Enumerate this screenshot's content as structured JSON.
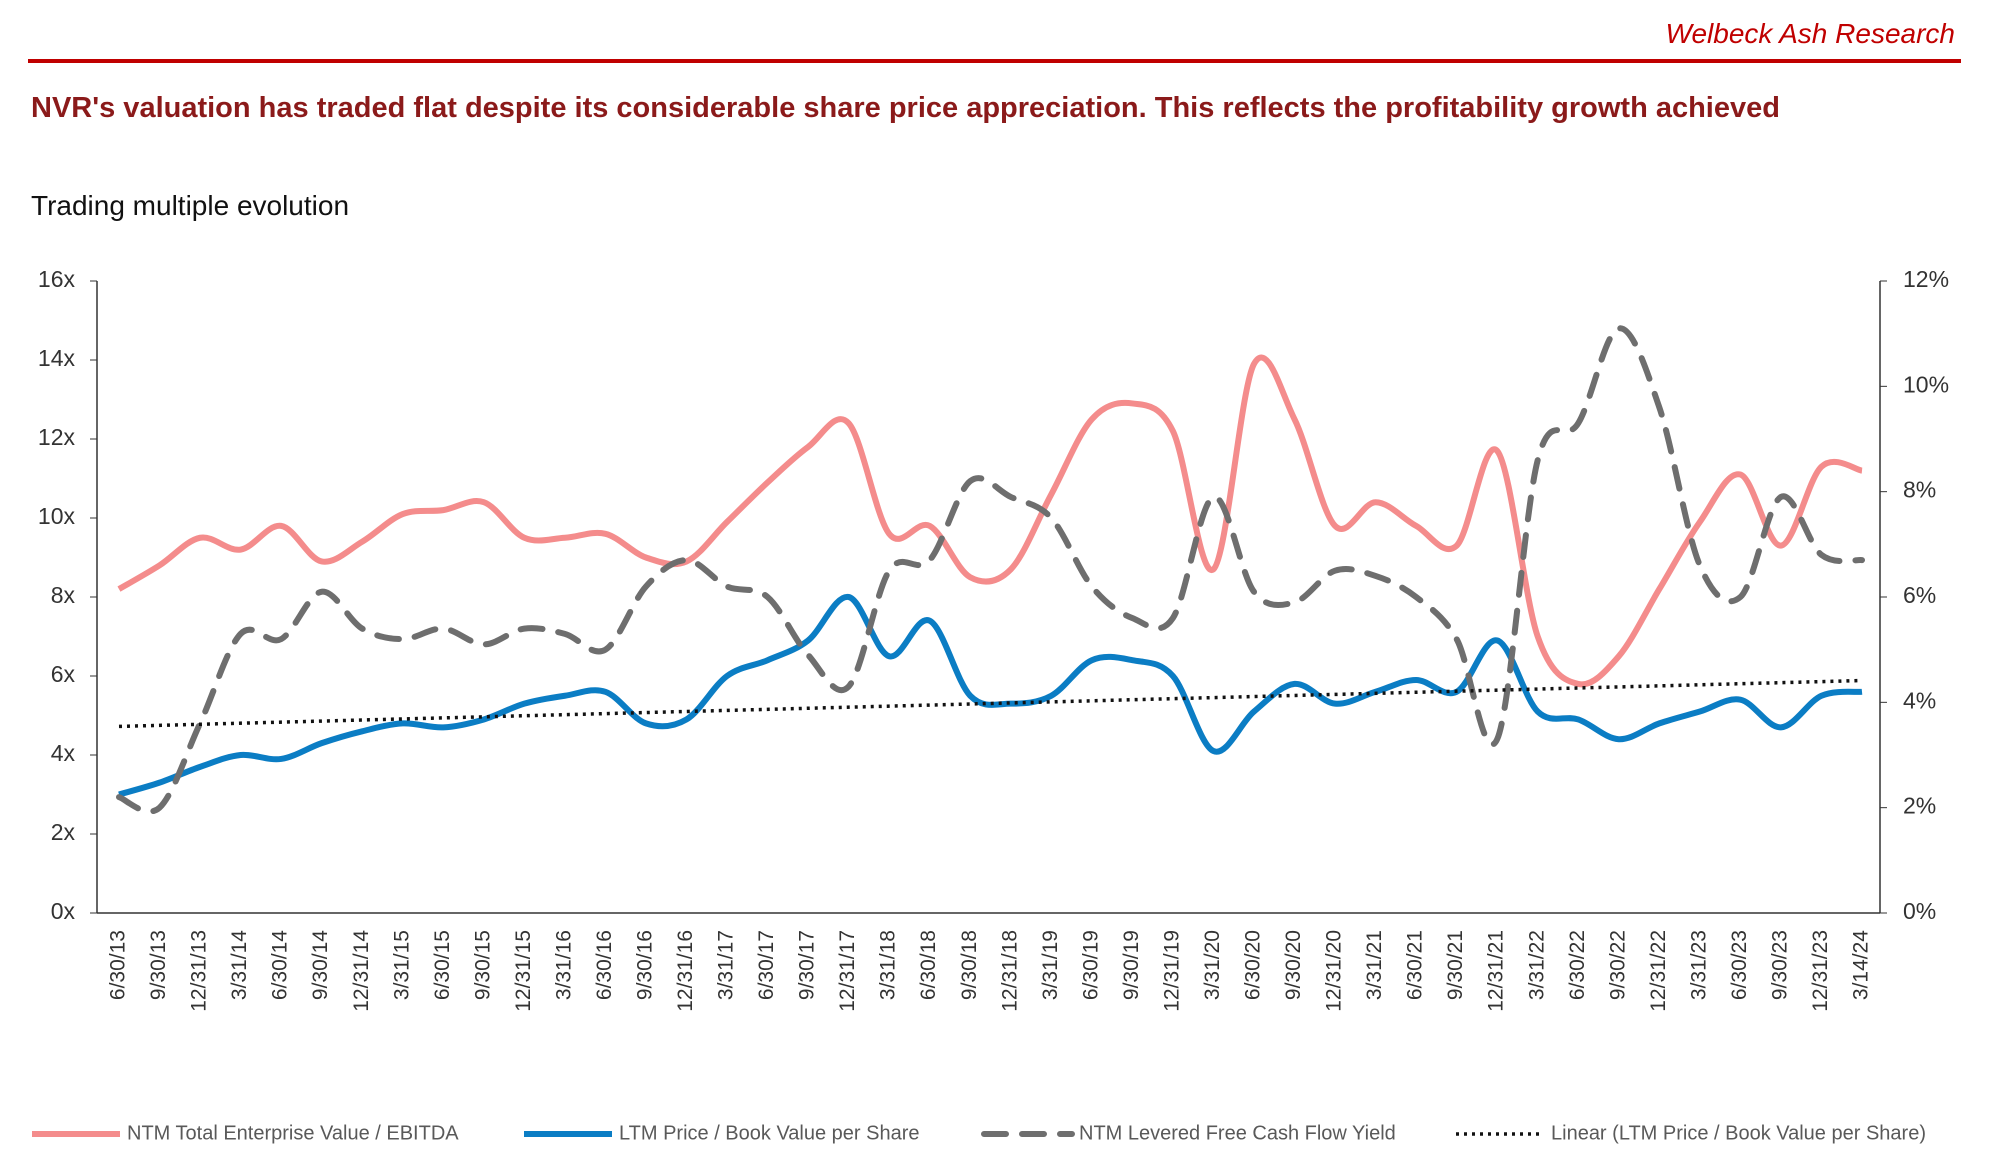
{
  "header": {
    "brand": "Welbeck Ash Research",
    "title": "NVR's valuation has traded flat despite its considerable share price appreciation. This reflects the profitability growth achieved",
    "subtitle": "Trading multiple evolution"
  },
  "chart_data": {
    "type": "line",
    "smooth": true,
    "categories": [
      "6/30/13",
      "9/30/13",
      "12/31/13",
      "3/31/14",
      "6/30/14",
      "9/30/14",
      "12/31/14",
      "3/31/15",
      "6/30/15",
      "9/30/15",
      "12/31/15",
      "3/31/16",
      "6/30/16",
      "9/30/16",
      "12/31/16",
      "3/31/17",
      "6/30/17",
      "9/30/17",
      "12/31/17",
      "3/31/18",
      "6/30/18",
      "9/30/18",
      "12/31/18",
      "3/31/19",
      "6/30/19",
      "9/30/19",
      "12/31/19",
      "3/31/20",
      "6/30/20",
      "9/30/20",
      "12/31/20",
      "3/31/21",
      "6/30/21",
      "9/30/21",
      "12/31/21",
      "3/31/22",
      "6/30/22",
      "9/30/22",
      "12/31/22",
      "3/31/23",
      "6/30/23",
      "9/30/23",
      "12/31/23",
      "3/14/24"
    ],
    "series": [
      {
        "name": "NTM Total Enterprise Value / EBITDA",
        "color": "#f48c8c",
        "dash": "solid",
        "values": [
          8.2,
          8.8,
          9.5,
          9.2,
          9.8,
          8.9,
          9.4,
          10.1,
          10.2,
          10.4,
          9.5,
          9.5,
          9.6,
          9.0,
          8.9,
          9.9,
          10.9,
          11.8,
          12.4,
          9.6,
          9.8,
          8.5,
          8.7,
          10.6,
          12.5,
          12.9,
          12.2,
          8.7,
          13.9,
          12.5,
          9.8,
          10.4,
          9.8,
          9.3,
          11.7,
          7.0,
          5.8,
          6.5,
          8.2,
          9.9,
          11.1,
          9.3,
          11.3,
          11.2
        ]
      },
      {
        "name": "LTM Price / Book Value per Share",
        "color": "#0b7dc4",
        "dash": "solid",
        "values": [
          3.0,
          3.3,
          3.7,
          4.0,
          3.9,
          4.3,
          4.6,
          4.8,
          4.7,
          4.9,
          5.3,
          5.5,
          5.6,
          4.8,
          4.9,
          6.0,
          6.4,
          6.9,
          8.0,
          6.5,
          7.4,
          5.5,
          5.3,
          5.5,
          6.4,
          6.4,
          6.0,
          4.1,
          5.1,
          5.8,
          5.3,
          5.6,
          5.9,
          5.6,
          6.9,
          5.1,
          4.9,
          4.4,
          4.8,
          5.1,
          5.4,
          4.7,
          5.5,
          5.6
        ]
      },
      {
        "name": "NTM Levered Free Cash Flow Yield",
        "color": "#6e6e6e",
        "dash": "dashed",
        "axis": "y2",
        "values": [
          2.2,
          2.0,
          3.6,
          5.3,
          5.2,
          6.1,
          5.4,
          5.2,
          5.4,
          5.1,
          5.4,
          5.3,
          5.0,
          6.2,
          6.7,
          6.2,
          6.0,
          4.9,
          4.3,
          6.5,
          6.7,
          8.2,
          7.9,
          7.5,
          6.2,
          5.6,
          5.6,
          7.9,
          6.1,
          5.9,
          6.5,
          6.4,
          6.0,
          5.2,
          3.3,
          8.6,
          9.3,
          11.1,
          9.6,
          6.6,
          6.0,
          7.9,
          6.8,
          6.7
        ]
      }
    ],
    "trendline": {
      "name": "Linear (LTM Price / Book Value per Share)",
      "color": "#111111",
      "dash": "dotted",
      "fit": "linear"
    },
    "ylim": [
      0,
      16
    ],
    "yticks": [
      {
        "value": 0,
        "label": "0x"
      },
      {
        "value": 2,
        "label": "2x"
      },
      {
        "value": 4,
        "label": "4x"
      },
      {
        "value": 6,
        "label": "6x"
      },
      {
        "value": 8,
        "label": "8x"
      },
      {
        "value": 10,
        "label": "10x"
      },
      {
        "value": 12,
        "label": "12x"
      },
      {
        "value": 14,
        "label": "14x"
      },
      {
        "value": 16,
        "label": "16x"
      }
    ],
    "y2lim": [
      0,
      12
    ],
    "y2ticks": [
      {
        "value": 0,
        "label": "0%"
      },
      {
        "value": 2,
        "label": "2%"
      },
      {
        "value": 4,
        "label": "4%"
      },
      {
        "value": 6,
        "label": "6%"
      },
      {
        "value": 8,
        "label": "8%"
      },
      {
        "value": 10,
        "label": "10%"
      },
      {
        "value": 12,
        "label": "12%"
      }
    ],
    "grid": false,
    "legend": "bottom"
  }
}
